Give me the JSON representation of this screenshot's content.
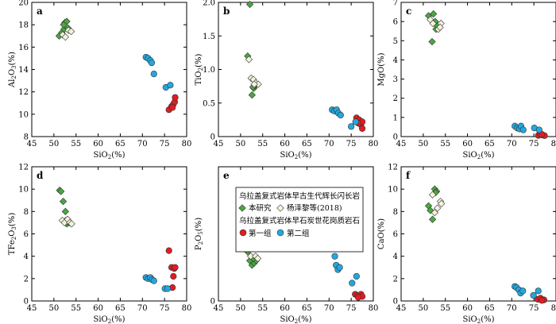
{
  "colors": {
    "this_study": "#49a840",
    "yang": "#f4f1dc",
    "group1": "#e01d22",
    "group2": "#23a7df",
    "edge": "#333333"
  },
  "legend": {
    "heading1": "乌拉盖复式岩体早古生代辉长闪长岩",
    "item1": "本研究",
    "item2": "杨泽黎等(2018)",
    "heading2": "乌拉盖复式岩体早石炭世花岗质岩石",
    "item3": "第一组",
    "item4": "第二组"
  },
  "chart_data": [
    {
      "type": "scatter",
      "panel": "a",
      "xlabel": "SiO2(%)",
      "ylabel": "Al2O3(%)",
      "xlim": [
        45,
        80
      ],
      "ylim": [
        8,
        20
      ],
      "xticks": [
        "45",
        "50",
        "55",
        "60",
        "65",
        "70",
        "75",
        "80"
      ],
      "yticks": [
        "8",
        "10",
        "12",
        "14",
        "16",
        "18",
        "20"
      ],
      "series": [
        {
          "name": "本研究",
          "marker": "diamond",
          "color": "this_study",
          "points": [
            [
              51.2,
              17.0
            ],
            [
              51.8,
              17.3
            ],
            [
              52.3,
              17.6
            ],
            [
              52.5,
              18.2
            ],
            [
              52.9,
              18.3
            ],
            [
              53.2,
              17.7
            ],
            [
              52.2,
              18.0
            ]
          ]
        },
        {
          "name": "杨泽黎等(2018)",
          "marker": "diamond",
          "color": "yang",
          "points": [
            [
              52.0,
              17.1
            ],
            [
              52.6,
              16.9
            ],
            [
              53.3,
              17.5
            ],
            [
              53.9,
              17.4
            ]
          ]
        },
        {
          "name": "第一组",
          "marker": "circle",
          "color": "group1",
          "points": [
            [
              76.0,
              10.4
            ],
            [
              76.6,
              10.7
            ],
            [
              77.0,
              10.9
            ],
            [
              77.3,
              11.1
            ],
            [
              77.4,
              11.5
            ],
            [
              76.8,
              10.6
            ]
          ]
        },
        {
          "name": "第二组",
          "marker": "circle",
          "color": "group2",
          "points": [
            [
              70.8,
              15.1
            ],
            [
              71.3,
              15.0
            ],
            [
              71.8,
              14.8
            ],
            [
              72.1,
              14.6
            ],
            [
              72.6,
              13.6
            ],
            [
              75.3,
              12.4
            ],
            [
              76.3,
              12.6
            ]
          ]
        }
      ]
    },
    {
      "type": "scatter",
      "panel": "b",
      "xlabel": "SiO2(%)",
      "ylabel": "TiO2(%)",
      "xlim": [
        45,
        80
      ],
      "ylim": [
        0,
        2.0
      ],
      "xticks": [
        "45",
        "50",
        "55",
        "60",
        "65",
        "70",
        "75",
        "80"
      ],
      "yticks": [
        "0",
        "0.5",
        "1.0",
        "1.5",
        "2.0"
      ],
      "series": [
        {
          "name": "本研究",
          "marker": "diamond",
          "color": "this_study",
          "points": [
            [
              51.6,
              1.2
            ],
            [
              52.1,
              1.97
            ],
            [
              52.6,
              0.62
            ],
            [
              53.0,
              0.72
            ],
            [
              53.3,
              0.76
            ],
            [
              52.8,
              0.74
            ]
          ]
        },
        {
          "name": "杨泽黎等(2018)",
          "marker": "diamond",
          "color": "yang",
          "points": [
            [
              51.9,
              1.15
            ],
            [
              52.4,
              0.87
            ],
            [
              52.9,
              0.85
            ],
            [
              53.4,
              0.8
            ],
            [
              54.0,
              0.78
            ],
            [
              53.1,
              0.78
            ]
          ]
        },
        {
          "name": "第一组",
          "marker": "circle",
          "color": "group1",
          "points": [
            [
              76.2,
              0.28
            ],
            [
              76.8,
              0.25
            ],
            [
              77.2,
              0.18
            ],
            [
              77.5,
              0.22
            ],
            [
              77.5,
              0.12
            ],
            [
              76.6,
              0.2
            ]
          ]
        },
        {
          "name": "第二组",
          "marker": "circle",
          "color": "group2",
          "points": [
            [
              70.7,
              0.4
            ],
            [
              71.2,
              0.38
            ],
            [
              71.7,
              0.4
            ],
            [
              72.1,
              0.35
            ],
            [
              72.6,
              0.32
            ],
            [
              75.0,
              0.15
            ],
            [
              76.0,
              0.22
            ]
          ]
        }
      ]
    },
    {
      "type": "scatter",
      "panel": "c",
      "xlabel": "SiO2(%)",
      "ylabel": "MgO(%)",
      "xlim": [
        45,
        80
      ],
      "ylim": [
        0,
        7
      ],
      "xticks": [
        "45",
        "50",
        "55",
        "60",
        "65",
        "70",
        "75",
        "80"
      ],
      "yticks": [
        "0",
        "1",
        "2",
        "3",
        "4",
        "5",
        "6",
        "7"
      ],
      "series": [
        {
          "name": "本研究",
          "marker": "diamond",
          "color": "this_study",
          "points": [
            [
              51.2,
              6.3
            ],
            [
              52.3,
              6.4
            ],
            [
              52.0,
              4.95
            ],
            [
              52.9,
              5.6
            ],
            [
              53.0,
              5.8
            ],
            [
              52.7,
              6.0
            ]
          ]
        },
        {
          "name": "杨泽黎等(2018)",
          "marker": "diamond",
          "color": "yang",
          "points": [
            [
              51.6,
              6.1
            ],
            [
              52.2,
              5.9
            ],
            [
              53.4,
              5.6
            ],
            [
              54.0,
              5.9
            ],
            [
              53.8,
              5.7
            ]
          ]
        },
        {
          "name": "第一组",
          "marker": "circle",
          "color": "group1",
          "points": [
            [
              76.0,
              0.06
            ],
            [
              76.5,
              0.1
            ],
            [
              77.0,
              0.08
            ],
            [
              77.4,
              0.05
            ],
            [
              76.8,
              0.12
            ]
          ]
        },
        {
          "name": "第二组",
          "marker": "circle",
          "color": "group2",
          "points": [
            [
              70.7,
              0.55
            ],
            [
              71.2,
              0.45
            ],
            [
              71.7,
              0.4
            ],
            [
              72.1,
              0.55
            ],
            [
              72.6,
              0.35
            ],
            [
              75.1,
              0.45
            ],
            [
              76.2,
              0.35
            ]
          ]
        }
      ]
    },
    {
      "type": "scatter",
      "panel": "d",
      "xlabel": "SiO2(%)",
      "ylabel": "TFe2O3(%)",
      "xlim": [
        45,
        80
      ],
      "ylim": [
        0,
        12
      ],
      "xticks": [
        "45",
        "50",
        "55",
        "60",
        "65",
        "70",
        "75",
        "80"
      ],
      "yticks": [
        "0",
        "2",
        "4",
        "6",
        "8",
        "10",
        "12"
      ],
      "series": [
        {
          "name": "本研究",
          "marker": "diamond",
          "color": "this_study",
          "points": [
            [
              51.3,
              9.9
            ],
            [
              51.6,
              9.8
            ],
            [
              52.1,
              8.9
            ],
            [
              52.6,
              8.0
            ],
            [
              52.9,
              6.9
            ],
            [
              53.3,
              7.0
            ],
            [
              52.7,
              7.2
            ]
          ]
        },
        {
          "name": "杨泽黎等(2018)",
          "marker": "diamond",
          "color": "yang",
          "points": [
            [
              51.9,
              7.2
            ],
            [
              52.4,
              7.0
            ],
            [
              53.1,
              7.3
            ],
            [
              53.6,
              7.0
            ],
            [
              54.0,
              6.9
            ]
          ]
        },
        {
          "name": "第一组",
          "marker": "circle",
          "color": "group1",
          "points": [
            [
              76.0,
              4.5
            ],
            [
              76.6,
              3.0
            ],
            [
              77.2,
              2.9
            ],
            [
              77.0,
              2.2
            ],
            [
              77.4,
              3.0
            ],
            [
              76.8,
              1.2
            ]
          ]
        },
        {
          "name": "第二组",
          "marker": "circle",
          "color": "group2",
          "points": [
            [
              70.8,
              2.1
            ],
            [
              71.3,
              2.0
            ],
            [
              71.8,
              2.1
            ],
            [
              72.2,
              1.9
            ],
            [
              72.6,
              1.8
            ],
            [
              75.1,
              1.1
            ],
            [
              75.7,
              1.1
            ]
          ]
        }
      ]
    },
    {
      "type": "scatter",
      "panel": "e",
      "xlabel": "SiO2(%)",
      "ylabel": "P2O5(%)",
      "xlim": [
        45,
        80
      ],
      "ylim": [
        0,
        null
      ],
      "xticks": [
        "45",
        "50",
        "55",
        "60",
        "65",
        "70",
        "75",
        "80"
      ],
      "yticks": [
        "0"
      ],
      "series": [
        {
          "name": "本研究",
          "marker": "diamond",
          "color": "this_study",
          "points": [
            [
              51.6,
              0.11
            ],
            [
              52.1,
              0.09
            ],
            [
              52.6,
              0.08
            ],
            [
              53.1,
              0.085
            ],
            [
              53.5,
              0.09
            ],
            [
              52.9,
              0.095
            ]
          ]
        },
        {
          "name": "杨泽黎等(2018)",
          "marker": "diamond",
          "color": "yang",
          "points": [
            [
              52.3,
              0.1
            ],
            [
              52.8,
              0.13
            ],
            [
              53.4,
              0.1
            ],
            [
              53.9,
              0.095
            ]
          ]
        },
        {
          "name": "第一组",
          "marker": "circle",
          "color": "group1",
          "points": [
            [
              75.9,
              0.015
            ],
            [
              76.4,
              0.012
            ],
            [
              76.8,
              0.01
            ],
            [
              77.2,
              0.015
            ],
            [
              77.5,
              0.01
            ],
            [
              76.6,
              0.008
            ]
          ]
        },
        {
          "name": "第二组",
          "marker": "circle",
          "color": "group2",
          "points": [
            [
              70.8,
              0.118
            ],
            [
              71.3,
              0.1
            ],
            [
              71.6,
              0.08
            ],
            [
              72.0,
              0.07
            ],
            [
              72.4,
              0.075
            ],
            [
              75.2,
              0.04
            ],
            [
              76.2,
              0.055
            ]
          ]
        }
      ]
    },
    {
      "type": "scatter",
      "panel": "f",
      "xlabel": "SiO2(%)",
      "ylabel": "CaO(%)",
      "xlim": [
        45,
        80
      ],
      "ylim": [
        0,
        12
      ],
      "xticks": [
        "45",
        "50",
        "55",
        "60",
        "65",
        "70",
        "75",
        "80"
      ],
      "yticks": [
        "0",
        "2",
        "4",
        "6",
        "8",
        "10",
        "12"
      ],
      "series": [
        {
          "name": "本研究",
          "marker": "diamond",
          "color": "this_study",
          "points": [
            [
              51.2,
              8.5
            ],
            [
              51.6,
              8.1
            ],
            [
              52.1,
              7.3
            ],
            [
              52.6,
              10.0
            ],
            [
              53.0,
              9.8
            ],
            [
              52.8,
              9.7
            ]
          ]
        },
        {
          "name": "杨泽黎等(2018)",
          "marker": "diamond",
          "color": "yang",
          "points": [
            [
              52.1,
              9.5
            ],
            [
              52.6,
              7.9
            ],
            [
              53.2,
              8.3
            ],
            [
              53.9,
              8.9
            ],
            [
              54.1,
              8.7
            ]
          ]
        },
        {
          "name": "第一组",
          "marker": "circle",
          "color": "group1",
          "points": [
            [
              75.9,
              0.15
            ],
            [
              76.5,
              0.25
            ],
            [
              77.0,
              0.1
            ],
            [
              77.3,
              0.1
            ],
            [
              76.8,
              0.05
            ]
          ]
        },
        {
          "name": "第二组",
          "marker": "circle",
          "color": "group2",
          "points": [
            [
              70.7,
              1.3
            ],
            [
              71.1,
              1.2
            ],
            [
              71.6,
              1.0
            ],
            [
              72.0,
              0.7
            ],
            [
              72.5,
              0.9
            ],
            [
              74.9,
              0.5
            ],
            [
              76.0,
              0.9
            ]
          ]
        }
      ]
    }
  ]
}
